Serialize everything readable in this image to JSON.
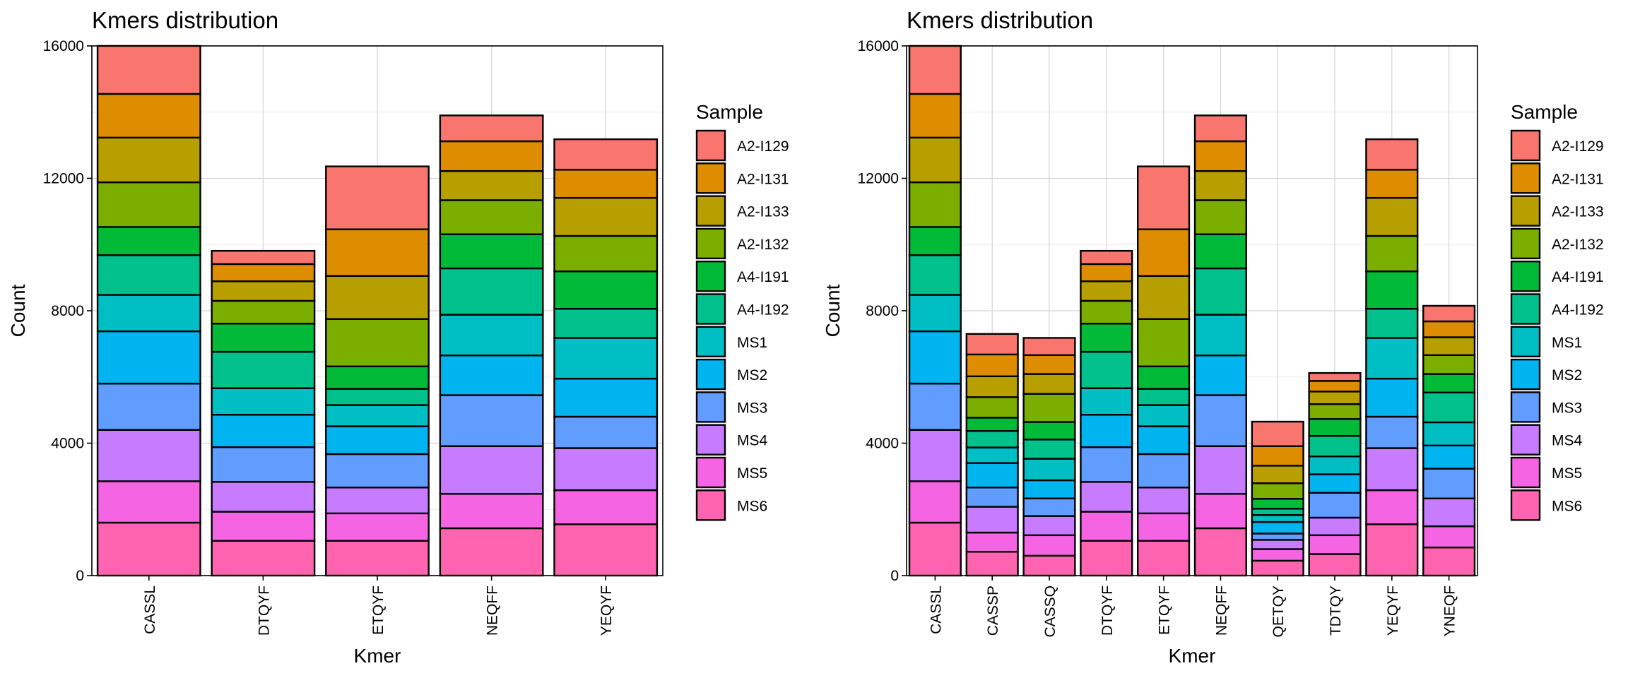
{
  "legend_title": "Sample",
  "samples": [
    "A2-I129",
    "A2-I131",
    "A2-I133",
    "A2-I132",
    "A4-I191",
    "A4-I192",
    "MS1",
    "MS2",
    "MS3",
    "MS4",
    "MS5",
    "MS6"
  ],
  "colors": [
    "#F8766D",
    "#DE8C00",
    "#B79F00",
    "#7CAE00",
    "#00BA38",
    "#00C08B",
    "#00BFC4",
    "#00B4F0",
    "#619CFF",
    "#C77CFF",
    "#F564E3",
    "#FF64B0"
  ],
  "chart_data": [
    {
      "type": "bar",
      "stacked": true,
      "title": "Kmers distribution",
      "xlabel": "Kmer",
      "ylabel": "Count",
      "ylim": [
        0,
        16000
      ],
      "yticks": [
        0,
        4000,
        8000,
        12000,
        16000
      ],
      "grid": true,
      "legend_position": "right",
      "categories": [
        "CASSL",
        "DTQYF",
        "ETQYF",
        "NEQFF",
        "YEQYF"
      ],
      "series": [
        {
          "name": "MS6",
          "values": [
            1600,
            1050,
            1050,
            1430,
            1550
          ]
        },
        {
          "name": "MS5",
          "values": [
            1250,
            880,
            830,
            1040,
            1030
          ]
        },
        {
          "name": "MS4",
          "values": [
            1550,
            900,
            780,
            1440,
            1270
          ]
        },
        {
          "name": "MS3",
          "values": [
            1400,
            1050,
            1010,
            1540,
            950
          ]
        },
        {
          "name": "MS2",
          "values": [
            1580,
            980,
            840,
            1200,
            1150
          ]
        },
        {
          "name": "MS1",
          "values": [
            1100,
            800,
            640,
            1230,
            1230
          ]
        },
        {
          "name": "A4-I192",
          "values": [
            1200,
            1100,
            490,
            1400,
            880
          ]
        },
        {
          "name": "A4-I191",
          "values": [
            850,
            850,
            680,
            1030,
            1130
          ]
        },
        {
          "name": "A2-I132",
          "values": [
            1350,
            690,
            1430,
            1030,
            1070
          ]
        },
        {
          "name": "A2-I133",
          "values": [
            1350,
            590,
            1300,
            880,
            1150
          ]
        },
        {
          "name": "A2-I131",
          "values": [
            1320,
            520,
            1410,
            900,
            850
          ]
        },
        {
          "name": "A2-I129",
          "values": [
            1450,
            400,
            1900,
            780,
            920
          ]
        }
      ]
    },
    {
      "type": "bar",
      "stacked": true,
      "title": "Kmers distribution",
      "xlabel": "Kmer",
      "ylabel": "Count",
      "ylim": [
        0,
        16000
      ],
      "yticks": [
        0,
        4000,
        8000,
        12000,
        16000
      ],
      "grid": true,
      "legend_position": "right",
      "categories": [
        "CASSL",
        "CASSP",
        "CASSQ",
        "DTQYF",
        "ETQYF",
        "NEQFF",
        "QETQY",
        "TDTQY",
        "YEQYF",
        "YNEQF"
      ],
      "series": [
        {
          "name": "MS6",
          "values": [
            1600,
            720,
            600,
            1050,
            1050,
            1430,
            450,
            650,
            1550,
            850
          ]
        },
        {
          "name": "MS5",
          "values": [
            1250,
            580,
            620,
            880,
            830,
            1040,
            350,
            570,
            1030,
            640
          ]
        },
        {
          "name": "MS4",
          "values": [
            1550,
            780,
            580,
            900,
            780,
            1440,
            280,
            530,
            1270,
            840
          ]
        },
        {
          "name": "MS3",
          "values": [
            1400,
            580,
            530,
            1050,
            1010,
            1540,
            190,
            750,
            950,
            900
          ]
        },
        {
          "name": "MS2",
          "values": [
            1580,
            740,
            550,
            980,
            840,
            1200,
            350,
            560,
            1150,
            700
          ]
        },
        {
          "name": "MS1",
          "values": [
            1100,
            470,
            650,
            800,
            640,
            1230,
            210,
            540,
            1230,
            700
          ]
        },
        {
          "name": "A4-I192",
          "values": [
            1200,
            500,
            580,
            1100,
            490,
            1400,
            190,
            620,
            880,
            900
          ]
        },
        {
          "name": "A4-I191",
          "values": [
            850,
            400,
            530,
            850,
            680,
            1030,
            300,
            510,
            1130,
            560
          ]
        },
        {
          "name": "A2-I132",
          "values": [
            1350,
            620,
            850,
            690,
            1430,
            1030,
            470,
            450,
            1070,
            570
          ]
        },
        {
          "name": "A2-I133",
          "values": [
            1350,
            630,
            600,
            590,
            1300,
            880,
            530,
            380,
            1150,
            540
          ]
        },
        {
          "name": "A2-I131",
          "values": [
            1320,
            660,
            570,
            520,
            1410,
            900,
            590,
            320,
            850,
            480
          ]
        },
        {
          "name": "A2-I129",
          "values": [
            1450,
            620,
            520,
            400,
            1900,
            780,
            740,
            240,
            920,
            470
          ]
        }
      ]
    }
  ]
}
